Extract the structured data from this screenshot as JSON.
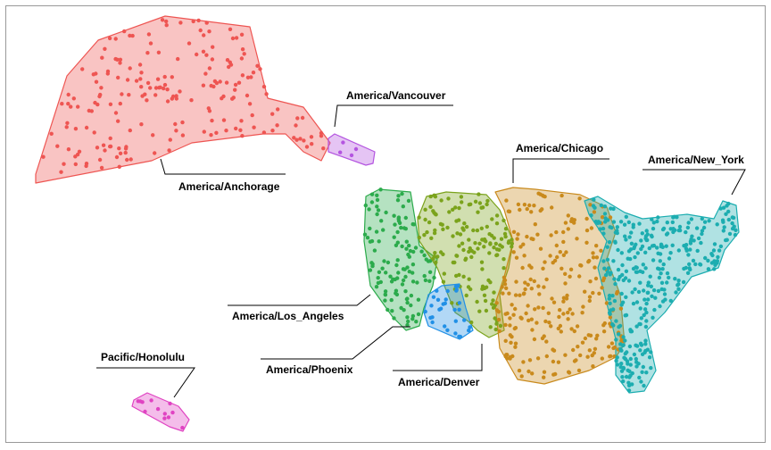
{
  "regions": [
    {
      "label": "America/Anchorage",
      "color": "#ee5552"
    },
    {
      "label": "America/Vancouver",
      "color": "#b455e0"
    },
    {
      "label": "America/Los_Angeles",
      "color": "#2cab4c"
    },
    {
      "label": "America/Denver",
      "color": "#7ba31c"
    },
    {
      "label": "America/Phoenix",
      "color": "#2190e6"
    },
    {
      "label": "America/Chicago",
      "color": "#c98a1c"
    },
    {
      "label": "America/New_York",
      "color": "#1cadb0"
    },
    {
      "label": "Pacific/Honolulu",
      "color": "#e043c2"
    }
  ]
}
